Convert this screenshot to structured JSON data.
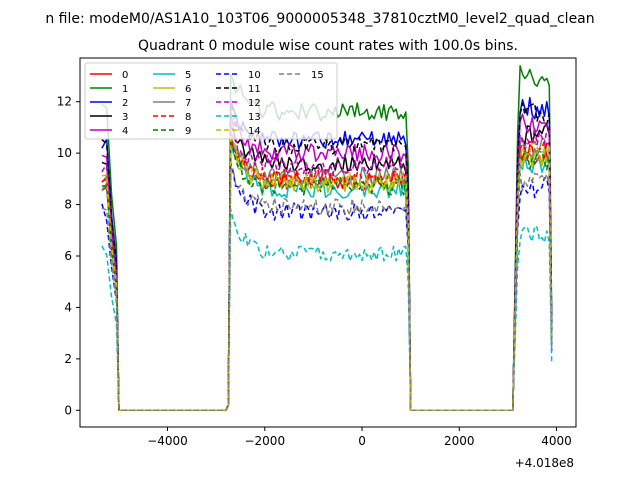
{
  "figure": {
    "suptitle": "n file: modeM0/AS1A10_103T06_9000005348_37810cztM0_level2_quad_clean",
    "title": "Quadrant 0 module wise count rates with 100.0s bins.",
    "offset_label": "+4.018e8"
  },
  "chart_data": {
    "type": "line",
    "title": "Quadrant 0 module wise count rates with 100.0s bins.",
    "xlabel": "",
    "ylabel": "",
    "x_offset": 401800000,
    "xlim": [
      -5800,
      4400
    ],
    "ylim": [
      -0.65,
      13.7
    ],
    "xticks": [
      -4000,
      -2000,
      0,
      2000,
      4000
    ],
    "xtick_labels": [
      "−4000",
      "−2000",
      "0",
      "2000",
      "4000"
    ],
    "yticks": [
      0,
      2,
      4,
      6,
      8,
      10,
      12
    ],
    "ytick_labels": [
      "0",
      "2",
      "4",
      "6",
      "8",
      "10",
      "12"
    ],
    "grid": false,
    "legend_position": "top-left",
    "legend_columns": 4,
    "segments": [
      {
        "start": -5350,
        "end": -5050,
        "step": 100
      },
      {
        "start": -2700,
        "end": 950,
        "step": 50
      },
      {
        "start": 3200,
        "end": 3900,
        "step": 50
      }
    ],
    "series": [
      {
        "name": "0",
        "color": "#ff0000",
        "dash": "solid",
        "level": 8.9,
        "noise": 0.35
      },
      {
        "name": "1",
        "color": "#008000",
        "dash": "solid",
        "level": 11.6,
        "noise": 0.35
      },
      {
        "name": "2",
        "color": "#0000ff",
        "dash": "solid",
        "level": 10.5,
        "noise": 0.35
      },
      {
        "name": "3",
        "color": "#000000",
        "dash": "solid",
        "level": 9.6,
        "noise": 0.35
      },
      {
        "name": "4",
        "color": "#bf00bf",
        "dash": "solid",
        "level": 10.0,
        "noise": 0.35
      },
      {
        "name": "5",
        "color": "#00bfbf",
        "dash": "solid",
        "level": 8.6,
        "noise": 0.35
      },
      {
        "name": "6",
        "color": "#bfbf00",
        "dash": "solid",
        "level": 8.8,
        "noise": 0.35
      },
      {
        "name": "7",
        "color": "#808080",
        "dash": "solid",
        "level": 9.1,
        "noise": 0.35
      },
      {
        "name": "8",
        "color": "#ff0000",
        "dash": "dashed",
        "level": 9.0,
        "noise": 0.35
      },
      {
        "name": "9",
        "color": "#008000",
        "dash": "dashed",
        "level": 8.7,
        "noise": 0.35
      },
      {
        "name": "10",
        "color": "#0000ff",
        "dash": "dashed",
        "level": 7.7,
        "noise": 0.35
      },
      {
        "name": "11",
        "color": "#000000",
        "dash": "dashed",
        "level": 10.3,
        "noise": 0.35
      },
      {
        "name": "12",
        "color": "#bf00bf",
        "dash": "dashed",
        "level": 9.5,
        "noise": 0.35
      },
      {
        "name": "13",
        "color": "#00bfbf",
        "dash": "dashed",
        "level": 6.1,
        "noise": 0.3
      },
      {
        "name": "14",
        "color": "#bfbf00",
        "dash": "dashed",
        "level": 8.9,
        "noise": 0.35
      },
      {
        "name": "15",
        "color": "#808080",
        "dash": "dashed",
        "level": 7.9,
        "noise": 0.35
      }
    ]
  }
}
